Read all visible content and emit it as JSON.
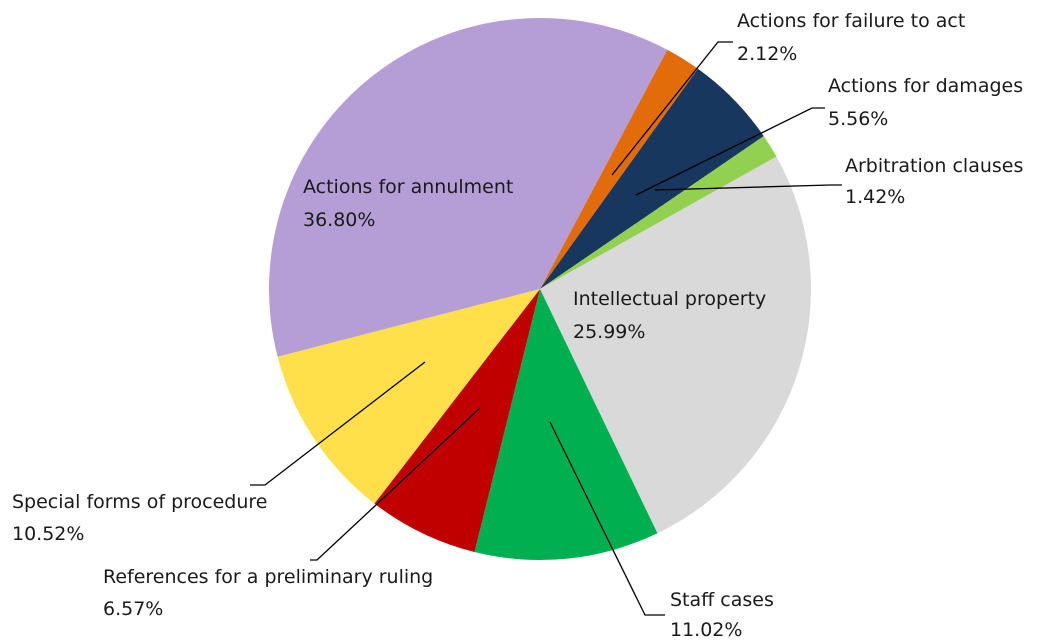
{
  "chart_data": {
    "type": "pie",
    "categories": [
      "Actions for failure to act",
      "Actions for damages",
      "Arbitration clauses",
      "Intellectual property",
      "Staff cases",
      "References for a preliminary ruling",
      "Special forms of procedure",
      "Actions for annulment"
    ],
    "values": [
      2.12,
      5.56,
      1.42,
      25.99,
      11.02,
      6.57,
      10.52,
      36.8
    ],
    "value_labels": [
      "2.12%",
      "5.56%",
      "1.42%",
      "25.99%",
      "11.02%",
      "6.57%",
      "10.52%",
      "36.80%"
    ],
    "colors": [
      "#e36c0a",
      "#17375e",
      "#92d050",
      "#d9d9d9",
      "#00b050",
      "#c00000",
      "#ffe04b",
      "#b59ed6"
    ]
  }
}
